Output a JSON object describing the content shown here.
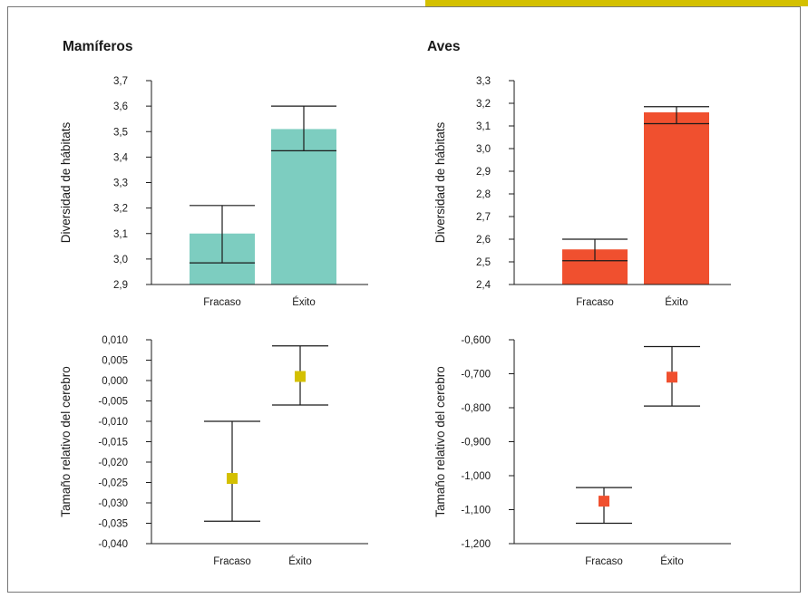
{
  "colors": {
    "accent_bar": "#d4c000",
    "mammals_bar": "#7dcdc0",
    "birds_bar": "#f0502f",
    "mammals_point": "#d4c000",
    "birds_point": "#f0502f"
  },
  "chart_data": [
    {
      "type": "bar",
      "title": "Mamíferos",
      "ylabel": "Diversidad de hábitats",
      "categories": [
        "Fracaso",
        "Éxito"
      ],
      "values": [
        3.1,
        3.51
      ],
      "err_low": [
        2.985,
        3.425
      ],
      "err_high": [
        3.21,
        3.6
      ],
      "ylim": [
        2.9,
        3.7
      ],
      "yticks": [
        2.9,
        3.0,
        3.1,
        3.2,
        3.3,
        3.4,
        3.5,
        3.6,
        3.7
      ],
      "ytick_labels": [
        "2,9",
        "3,0",
        "3,1",
        "3,2",
        "3,3",
        "3,4",
        "3,5",
        "3,6",
        "3,7"
      ],
      "color": "#7dcdc0",
      "grid": false
    },
    {
      "type": "bar",
      "title": "Aves",
      "ylabel": "Diversidad de hábitats",
      "categories": [
        "Fracaso",
        "Éxito"
      ],
      "values": [
        2.555,
        3.16
      ],
      "err_low": [
        2.505,
        3.11
      ],
      "err_high": [
        2.6,
        3.185
      ],
      "ylim": [
        2.4,
        3.3
      ],
      "yticks": [
        2.4,
        2.5,
        2.6,
        2.7,
        2.8,
        2.9,
        3.0,
        3.1,
        3.2,
        3.3
      ],
      "ytick_labels": [
        "2,4",
        "2,5",
        "2,6",
        "2,7",
        "2,8",
        "2,9",
        "3,0",
        "3,1",
        "3,2",
        "3,3"
      ],
      "color": "#f0502f",
      "grid": false
    },
    {
      "type": "scatter",
      "ylabel": "Tamaño relativo del cerebro",
      "categories": [
        "Fracaso",
        "Éxito"
      ],
      "values": [
        -0.024,
        0.001
      ],
      "err_low": [
        -0.0345,
        -0.006
      ],
      "err_high": [
        -0.01,
        0.0085
      ],
      "ylim": [
        -0.04,
        0.01
      ],
      "yticks": [
        -0.04,
        -0.035,
        -0.03,
        -0.025,
        -0.02,
        -0.015,
        -0.01,
        -0.005,
        0.0,
        0.005,
        0.01
      ],
      "ytick_labels": [
        "-0,040",
        "-0,035",
        "-0,030",
        "-0,025",
        "-0,020",
        "-0,015",
        "-0,010",
        "-0,005",
        "0,000",
        "0,005",
        "0,010"
      ],
      "color": "#d4c000",
      "grid": false
    },
    {
      "type": "scatter",
      "ylabel": "Tamaño relativo del cerebro",
      "categories": [
        "Fracaso",
        "Éxito"
      ],
      "values": [
        -1.075,
        -0.71
      ],
      "err_low": [
        -1.14,
        -0.795
      ],
      "err_high": [
        -1.035,
        -0.62
      ],
      "ylim": [
        -1.2,
        -0.6
      ],
      "yticks": [
        -1.2,
        -1.1,
        -1.0,
        -0.9,
        -0.8,
        -0.7,
        -0.6
      ],
      "ytick_labels": [
        "-1,200",
        "-1,100",
        "-1,000",
        "-0,900",
        "-0,800",
        "-0,700",
        "-0,600"
      ],
      "color": "#f0502f",
      "grid": false
    }
  ]
}
